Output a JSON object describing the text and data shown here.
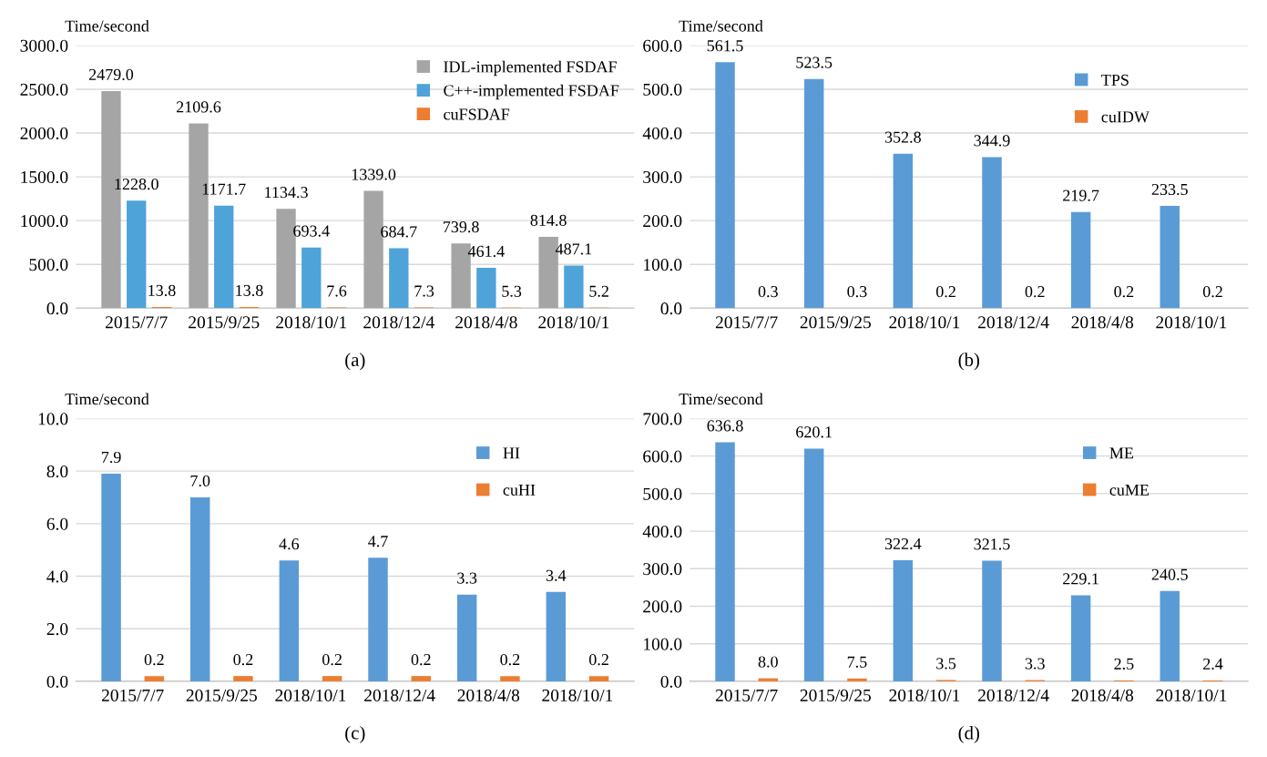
{
  "chart_data": [
    {
      "type": "bar",
      "title": "(a)",
      "ylabel": "Time/second",
      "categories": [
        "2015/7/7",
        "2015/9/25",
        "2018/10/1",
        "2018/12/4",
        "2018/4/8",
        "2018/10/1"
      ],
      "series": [
        {
          "name": "IDL-implemented FSDAF",
          "color": "#a5a5a5",
          "values": [
            2479,
            2109.6,
            1134.3,
            1339,
            739.8,
            814.8
          ],
          "value_labels": [
            "2479.0",
            "2109.6",
            "1134.3",
            "1339.0",
            "739.8",
            "814.8"
          ]
        },
        {
          "name": "C++-implemented FSDAF",
          "color": "#4ea3d8",
          "values": [
            1228,
            1171.7,
            693.4,
            684.7,
            461.4,
            487.1
          ],
          "value_labels": [
            "1228.0",
            "1171.7",
            "693.4",
            "684.7",
            "461.4",
            "487.1"
          ]
        },
        {
          "name": "cuFSDAF",
          "color": "#ed7d31",
          "values": [
            13.8,
            13.8,
            7.6,
            7.3,
            5.3,
            5.2
          ],
          "value_labels": [
            "13.8",
            "13.8",
            "7.6",
            "7.3",
            "5.3",
            "5.2"
          ]
        }
      ],
      "ylim": [
        0,
        3000
      ],
      "yticks": [
        {
          "value": 0,
          "label": "0.0"
        },
        {
          "value": 500,
          "label": "500.0"
        },
        {
          "value": 1000,
          "label": "1000.0"
        },
        {
          "value": 1500,
          "label": "1500.0"
        },
        {
          "value": 2000,
          "label": "2000.0"
        },
        {
          "value": 2500,
          "label": "2500.0"
        },
        {
          "value": 3000,
          "label": "3000.0"
        }
      ],
      "grid": "y",
      "legend": "top right"
    },
    {
      "type": "bar",
      "title": "(b)",
      "ylabel": "Time/second",
      "categories": [
        "2015/7/7",
        "2015/9/25",
        "2018/10/1",
        "2018/12/4",
        "2018/4/8",
        "2018/10/1"
      ],
      "series": [
        {
          "name": "TPS",
          "color": "#5b9bd5",
          "values": [
            561.5,
            523.5,
            352.8,
            344.9,
            219.7,
            233.5
          ],
          "value_labels": [
            "561.5",
            "523.5",
            "352.8",
            "344.9",
            "219.7",
            "233.5"
          ]
        },
        {
          "name": "cuIDW",
          "color": "#ed7d31",
          "values": [
            0.3,
            0.3,
            0.2,
            0.2,
            0.2,
            0.2
          ],
          "value_labels": [
            "0.3",
            "0.3",
            "0.2",
            "0.2",
            "0.2",
            "0.2"
          ]
        }
      ],
      "ylim": [
        0,
        600
      ],
      "yticks": [
        {
          "value": 0,
          "label": "0.0"
        },
        {
          "value": 100,
          "label": "100.0"
        },
        {
          "value": 200,
          "label": "200.0"
        },
        {
          "value": 300,
          "label": "300.0"
        },
        {
          "value": 400,
          "label": "400.0"
        },
        {
          "value": 500,
          "label": "500.0"
        },
        {
          "value": 600,
          "label": "600.0"
        }
      ],
      "grid": "y",
      "legend": "top right"
    },
    {
      "type": "bar",
      "title": "(c)",
      "ylabel": "Time/second",
      "categories": [
        "2015/7/7",
        "2015/9/25",
        "2018/10/1",
        "2018/12/4",
        "2018/4/8",
        "2018/10/1"
      ],
      "series": [
        {
          "name": "HI",
          "color": "#5b9bd5",
          "values": [
            7.9,
            7,
            4.6,
            4.7,
            3.3,
            3.4
          ],
          "value_labels": [
            "7.9",
            "7.0",
            "4.6",
            "4.7",
            "3.3",
            "3.4"
          ]
        },
        {
          "name": "cuHI",
          "color": "#ed7d31",
          "values": [
            0.2,
            0.2,
            0.2,
            0.2,
            0.2,
            0.2
          ],
          "value_labels": [
            "0.2",
            "0.2",
            "0.2",
            "0.2",
            "0.2",
            "0.2"
          ]
        }
      ],
      "ylim": [
        0,
        10
      ],
      "yticks": [
        {
          "value": 0,
          "label": "0.0"
        },
        {
          "value": 2,
          "label": "2.0"
        },
        {
          "value": 4,
          "label": "4.0"
        },
        {
          "value": 6,
          "label": "6.0"
        },
        {
          "value": 8,
          "label": "8.0"
        },
        {
          "value": 10,
          "label": "10.0"
        }
      ],
      "grid": "y",
      "legend": "top right"
    },
    {
      "type": "bar",
      "title": "(d)",
      "ylabel": "Time/second",
      "categories": [
        "2015/7/7",
        "2015/9/25",
        "2018/10/1",
        "2018/12/4",
        "2018/4/8",
        "2018/10/1"
      ],
      "series": [
        {
          "name": "ME",
          "color": "#5b9bd5",
          "values": [
            636.8,
            620.1,
            322.4,
            321.5,
            229.1,
            240.5
          ],
          "value_labels": [
            "636.8",
            "620.1",
            "322.4",
            "321.5",
            "229.1",
            "240.5"
          ]
        },
        {
          "name": "cuME",
          "color": "#ed7d31",
          "values": [
            8,
            7.5,
            3.5,
            3.3,
            2.5,
            2.4
          ],
          "value_labels": [
            "8.0",
            "7.5",
            "3.5",
            "3.3",
            "2.5",
            "2.4"
          ]
        }
      ],
      "ylim": [
        0,
        700
      ],
      "yticks": [
        {
          "value": 0,
          "label": "0.0"
        },
        {
          "value": 100,
          "label": "100.0"
        },
        {
          "value": 200,
          "label": "200.0"
        },
        {
          "value": 300,
          "label": "300.0"
        },
        {
          "value": 400,
          "label": "400.0"
        },
        {
          "value": 500,
          "label": "500.0"
        },
        {
          "value": 600,
          "label": "600.0"
        },
        {
          "value": 700,
          "label": "700.0"
        }
      ],
      "grid": "y",
      "legend": "top right"
    }
  ]
}
